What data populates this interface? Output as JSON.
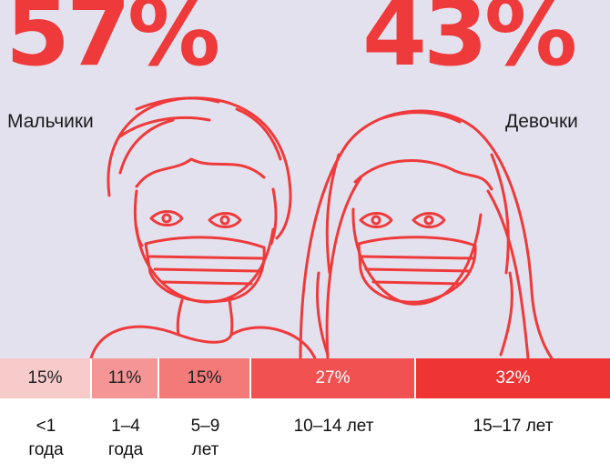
{
  "colors": {
    "accent": "#ee3a3a",
    "background": "#e4e1ee",
    "segment_fills": [
      "#f8cbcb",
      "#f59595",
      "#f47979",
      "#f25151",
      "#ef3434"
    ],
    "segment_text": [
      "#222222",
      "#222222",
      "#222222",
      "#ffffff",
      "#ffffff"
    ]
  },
  "icons": [
    "boy-in-mask-illustration",
    "girl-in-mask-illustration"
  ],
  "chart_data": [
    {
      "type": "pie",
      "categories": [
        "Мальчики",
        "Девочки"
      ],
      "values": [
        57,
        43
      ],
      "labels": [
        "57%",
        "43%"
      ]
    },
    {
      "type": "bar",
      "stacked": true,
      "categories": [
        "<1 года",
        "1–4 года",
        "5–9 лет",
        "10–14 лет",
        "15–17 лет"
      ],
      "values": [
        15,
        11,
        15,
        27,
        32
      ],
      "labels": [
        "15%",
        "11%",
        "15%",
        "27%",
        "32%"
      ]
    }
  ]
}
